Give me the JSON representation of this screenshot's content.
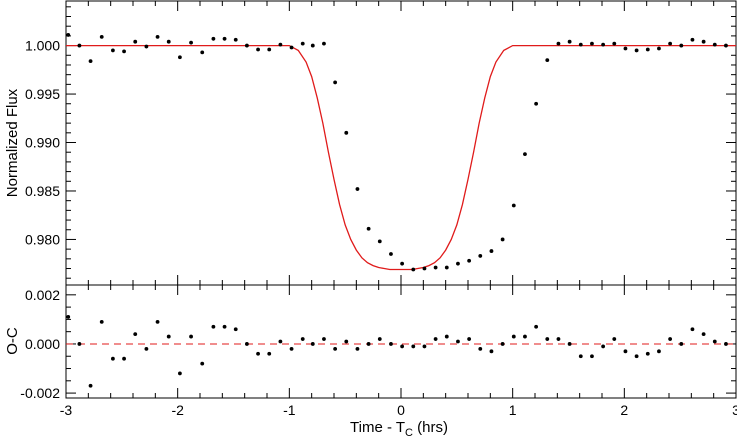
{
  "chart_data": [
    {
      "type": "scatter",
      "panel": "top",
      "ylabel": "Normalized Flux",
      "xlim": [
        -3,
        3
      ],
      "ylim": [
        0.9753,
        1.0046
      ],
      "x_ticks": [
        -3,
        -2,
        -1,
        0,
        1,
        2,
        3
      ],
      "y_ticks": [
        0.98,
        0.985,
        0.99,
        0.995,
        1.0
      ],
      "y_tick_labels": [
        "0.980",
        "0.985",
        "0.990",
        "0.995",
        "1.000"
      ],
      "grid": false,
      "colors": {
        "data": "#000000",
        "model": "#e01b1b"
      },
      "series": [
        {
          "kind": "points",
          "x": [
            -2.98,
            -2.88,
            -2.78,
            -2.68,
            -2.58,
            -2.48,
            -2.38,
            -2.28,
            -2.18,
            -2.08,
            -1.98,
            -1.88,
            -1.78,
            -1.68,
            -1.58,
            -1.48,
            -1.38,
            -1.28,
            -1.18,
            -1.08,
            -0.98,
            -0.88,
            -0.79,
            -0.69,
            -0.59,
            -0.49,
            -0.39,
            -0.29,
            -0.19,
            -0.09,
            0.01,
            0.11,
            0.21,
            0.31,
            0.41,
            0.51,
            0.61,
            0.71,
            0.81,
            0.91,
            1.01,
            1.11,
            1.21,
            1.31,
            1.41,
            1.51,
            1.61,
            1.71,
            1.81,
            1.91,
            2.01,
            2.11,
            2.21,
            2.31,
            2.41,
            2.51,
            2.61,
            2.71,
            2.81,
            2.91
          ],
          "y": [
            1.0011,
            1.0,
            0.9984,
            1.0009,
            0.9995,
            0.9994,
            1.0004,
            0.9999,
            1.0009,
            1.0004,
            0.9988,
            1.0003,
            0.9993,
            1.0007,
            1.0007,
            1.0006,
            1.0,
            0.9996,
            0.9996,
            1.0001,
            0.9998,
            1.0002,
            1.0,
            1.0002,
            0.9962,
            0.991,
            0.9852,
            0.9811,
            0.9798,
            0.9785,
            0.9775,
            0.9769,
            0.977,
            0.9771,
            0.9771,
            0.9775,
            0.9778,
            0.9783,
            0.9788,
            0.98,
            0.9835,
            0.9888,
            0.994,
            0.9985,
            1.0002,
            1.0004,
            1.0001,
            1.0002,
            1.0001,
            1.0002,
            0.9997,
            0.9995,
            0.9996,
            0.9997,
            1.0002,
            1.0,
            1.0006,
            1.0004,
            1.0001,
            1.0
          ]
        },
        {
          "kind": "model",
          "x": [
            -3.0,
            -1.0,
            -0.92,
            -0.85,
            -0.8,
            -0.75,
            -0.7,
            -0.65,
            -0.6,
            -0.55,
            -0.5,
            -0.45,
            -0.4,
            -0.35,
            -0.3,
            -0.25,
            -0.2,
            -0.15,
            -0.1,
            -0.05,
            0.0,
            0.05,
            0.1,
            0.15,
            0.2,
            0.25,
            0.3,
            0.35,
            0.4,
            0.45,
            0.5,
            0.55,
            0.6,
            0.65,
            0.7,
            0.75,
            0.8,
            0.85,
            0.92,
            1.0,
            3.0
          ],
          "y": [
            1.0,
            1.0,
            0.9995,
            0.9983,
            0.9968,
            0.9946,
            0.992,
            0.989,
            0.9862,
            0.9836,
            0.9815,
            0.98,
            0.9789,
            0.9781,
            0.9776,
            0.9773,
            0.9771,
            0.977,
            0.9769,
            0.9769,
            0.9769,
            0.9769,
            0.9769,
            0.977,
            0.9771,
            0.9773,
            0.9776,
            0.9781,
            0.9789,
            0.98,
            0.9815,
            0.9836,
            0.9862,
            0.989,
            0.992,
            0.9946,
            0.9968,
            0.9983,
            0.9995,
            1.0,
            1.0
          ]
        }
      ]
    },
    {
      "type": "scatter",
      "panel": "bottom",
      "ylabel": "O-C",
      "xlabel_prefix": "Time - T",
      "xlabel_sub": "C",
      "xlabel_suffix": " (hrs)",
      "xlim": [
        -3,
        3
      ],
      "ylim": [
        -0.0022,
        0.0024
      ],
      "x_ticks": [
        -3,
        -2,
        -1,
        0,
        1,
        2,
        3
      ],
      "x_tick_labels": [
        "-3",
        "-2",
        "-1",
        "0",
        "1",
        "2",
        "3"
      ],
      "y_ticks": [
        -0.002,
        0.0,
        0.002
      ],
      "y_tick_labels": [
        "-0.002",
        "0.000",
        "0.002"
      ],
      "grid": false,
      "zero_line": 0.0,
      "colors": {
        "data": "#000000",
        "zero_line": "#e01b1b"
      },
      "series": [
        {
          "kind": "points",
          "x": [
            -2.98,
            -2.88,
            -2.78,
            -2.68,
            -2.58,
            -2.48,
            -2.38,
            -2.28,
            -2.18,
            -2.08,
            -1.98,
            -1.88,
            -1.78,
            -1.68,
            -1.58,
            -1.48,
            -1.38,
            -1.28,
            -1.18,
            -1.08,
            -0.98,
            -0.88,
            -0.79,
            -0.69,
            -0.59,
            -0.49,
            -0.39,
            -0.29,
            -0.19,
            -0.09,
            0.01,
            0.11,
            0.21,
            0.31,
            0.41,
            0.51,
            0.61,
            0.71,
            0.81,
            0.91,
            1.01,
            1.11,
            1.21,
            1.31,
            1.41,
            1.51,
            1.61,
            1.71,
            1.81,
            1.91,
            2.01,
            2.11,
            2.21,
            2.31,
            2.41,
            2.51,
            2.61,
            2.71,
            2.81,
            2.91
          ],
          "y": [
            0.0011,
            0.0,
            -0.0017,
            0.0009,
            -0.0006,
            -0.0006,
            0.0004,
            -0.0002,
            0.0009,
            0.0003,
            -0.0012,
            0.0003,
            -0.0008,
            0.0007,
            0.0007,
            0.0006,
            0.0,
            -0.0004,
            -0.0004,
            0.0001,
            -0.0002,
            0.0002,
            0.0,
            0.0002,
            -0.0002,
            0.0001,
            -0.0002,
            0.0,
            0.0002,
            0.0,
            -0.0001,
            -0.0001,
            -0.0001,
            0.0002,
            0.0003,
            0.0001,
            0.0002,
            -0.0002,
            -0.0003,
            0.0,
            0.0003,
            0.0003,
            0.0007,
            0.0002,
            0.0002,
            0.0,
            -0.0005,
            -0.0005,
            -0.0001,
            0.0002,
            -0.0003,
            -0.0005,
            -0.0004,
            -0.0003,
            0.0002,
            0.0,
            0.0006,
            0.0004,
            0.0001,
            0.0
          ]
        }
      ]
    }
  ]
}
